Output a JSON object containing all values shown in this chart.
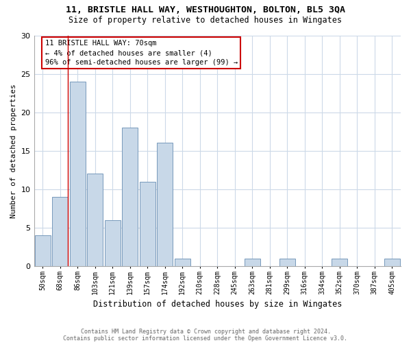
{
  "title1": "11, BRISTLE HALL WAY, WESTHOUGHTON, BOLTON, BL5 3QA",
  "title2": "Size of property relative to detached houses in Wingates",
  "xlabel": "Distribution of detached houses by size in Wingates",
  "ylabel": "Number of detached properties",
  "categories": [
    "50sqm",
    "68sqm",
    "86sqm",
    "103sqm",
    "121sqm",
    "139sqm",
    "157sqm",
    "174sqm",
    "192sqm",
    "210sqm",
    "228sqm",
    "245sqm",
    "263sqm",
    "281sqm",
    "299sqm",
    "316sqm",
    "334sqm",
    "352sqm",
    "370sqm",
    "387sqm",
    "405sqm"
  ],
  "values": [
    4,
    9,
    24,
    12,
    6,
    18,
    11,
    16,
    1,
    0,
    0,
    0,
    1,
    0,
    1,
    0,
    0,
    1,
    0,
    0,
    1
  ],
  "bar_color": "#c8d8e8",
  "bar_edge_color": "#7799bb",
  "annotation_lines": [
    "11 BRISTLE HALL WAY: 70sqm",
    "← 4% of detached houses are smaller (4)",
    "96% of semi-detached houses are larger (99) →"
  ],
  "annotation_box_color": "#ffffff",
  "annotation_box_edge": "#cc0000",
  "red_line_x": 1.45,
  "ylim": [
    0,
    30
  ],
  "yticks": [
    0,
    5,
    10,
    15,
    20,
    25,
    30
  ],
  "footnote1": "Contains HM Land Registry data © Crown copyright and database right 2024.",
  "footnote2": "Contains public sector information licensed under the Open Government Licence v3.0.",
  "background_color": "#ffffff",
  "grid_color": "#ccd9e8"
}
